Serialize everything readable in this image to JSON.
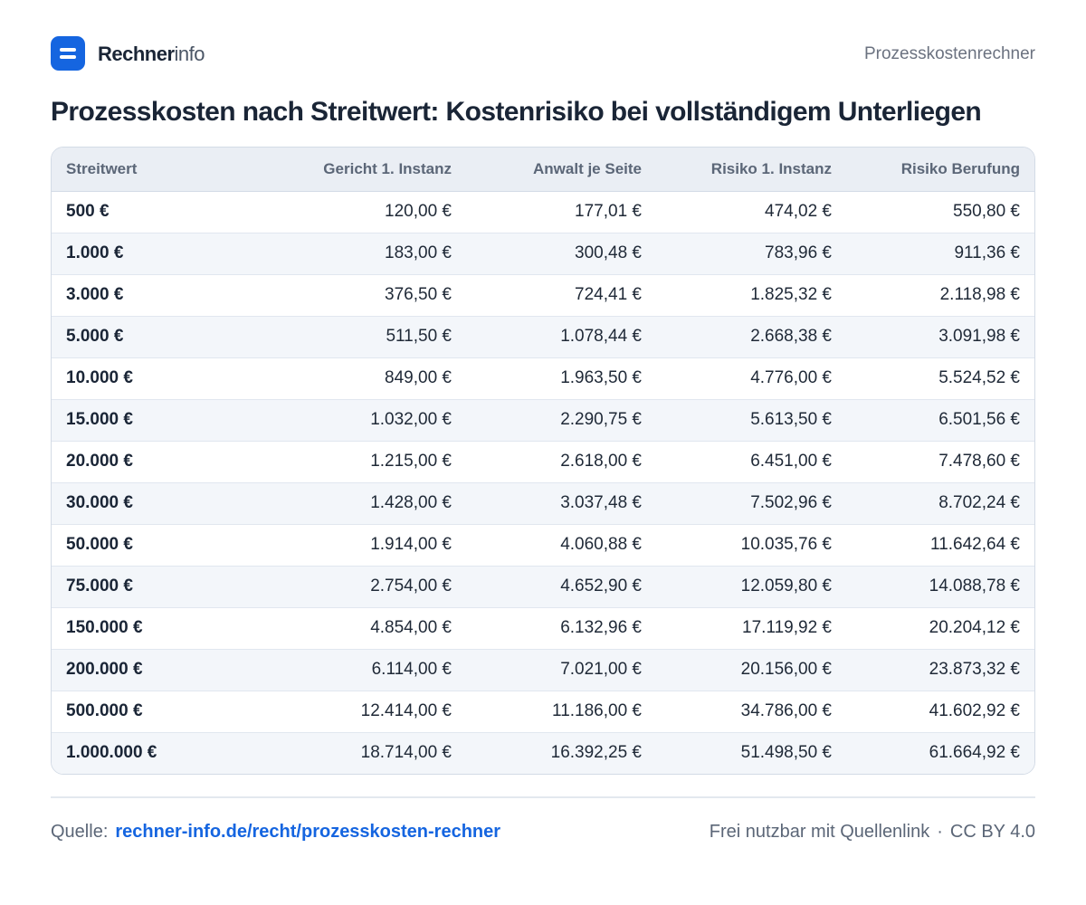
{
  "brand": {
    "name_bold": "Rechner",
    "name_light": "info",
    "icon": "menu-lines-icon",
    "color": "#1565e0"
  },
  "header": {
    "right_label": "Prozesskostenrechner"
  },
  "title": "Prozesskosten nach Streitwert: Kostenrisiko bei vollständigem Unterliegen",
  "table": {
    "columns": [
      "Streitwert",
      "Gericht 1. Instanz",
      "Anwalt je Seite",
      "Risiko 1. Instanz",
      "Risiko Berufung"
    ],
    "rows": [
      [
        "500 €",
        "120,00 €",
        "177,01 €",
        "474,02 €",
        "550,80 €"
      ],
      [
        "1.000 €",
        "183,00 €",
        "300,48 €",
        "783,96 €",
        "911,36 €"
      ],
      [
        "3.000 €",
        "376,50 €",
        "724,41 €",
        "1.825,32 €",
        "2.118,98 €"
      ],
      [
        "5.000 €",
        "511,50 €",
        "1.078,44 €",
        "2.668,38 €",
        "3.091,98 €"
      ],
      [
        "10.000 €",
        "849,00 €",
        "1.963,50 €",
        "4.776,00 €",
        "5.524,52 €"
      ],
      [
        "15.000 €",
        "1.032,00 €",
        "2.290,75 €",
        "5.613,50 €",
        "6.501,56 €"
      ],
      [
        "20.000 €",
        "1.215,00 €",
        "2.618,00 €",
        "6.451,00 €",
        "7.478,60 €"
      ],
      [
        "30.000 €",
        "1.428,00 €",
        "3.037,48 €",
        "7.502,96 €",
        "8.702,24 €"
      ],
      [
        "50.000 €",
        "1.914,00 €",
        "4.060,88 €",
        "10.035,76 €",
        "11.642,64 €"
      ],
      [
        "75.000 €",
        "2.754,00 €",
        "4.652,90 €",
        "12.059,80 €",
        "14.088,78 €"
      ],
      [
        "150.000 €",
        "4.854,00 €",
        "6.132,96 €",
        "17.119,92 €",
        "20.204,12 €"
      ],
      [
        "200.000 €",
        "6.114,00 €",
        "7.021,00 €",
        "20.156,00 €",
        "23.873,32 €"
      ],
      [
        "500.000 €",
        "12.414,00 €",
        "11.186,00 €",
        "34.786,00 €",
        "41.602,92 €"
      ],
      [
        "1.000.000 €",
        "18.714,00 €",
        "16.392,25 €",
        "51.498,50 €",
        "61.664,92 €"
      ]
    ]
  },
  "footer": {
    "source_label": "Quelle:",
    "source_link": "rechner-info.de/recht/prozesskosten-rechner",
    "license_text": "Frei nutzbar mit Quellenlink",
    "separator": "·",
    "license": "CC BY 4.0"
  }
}
